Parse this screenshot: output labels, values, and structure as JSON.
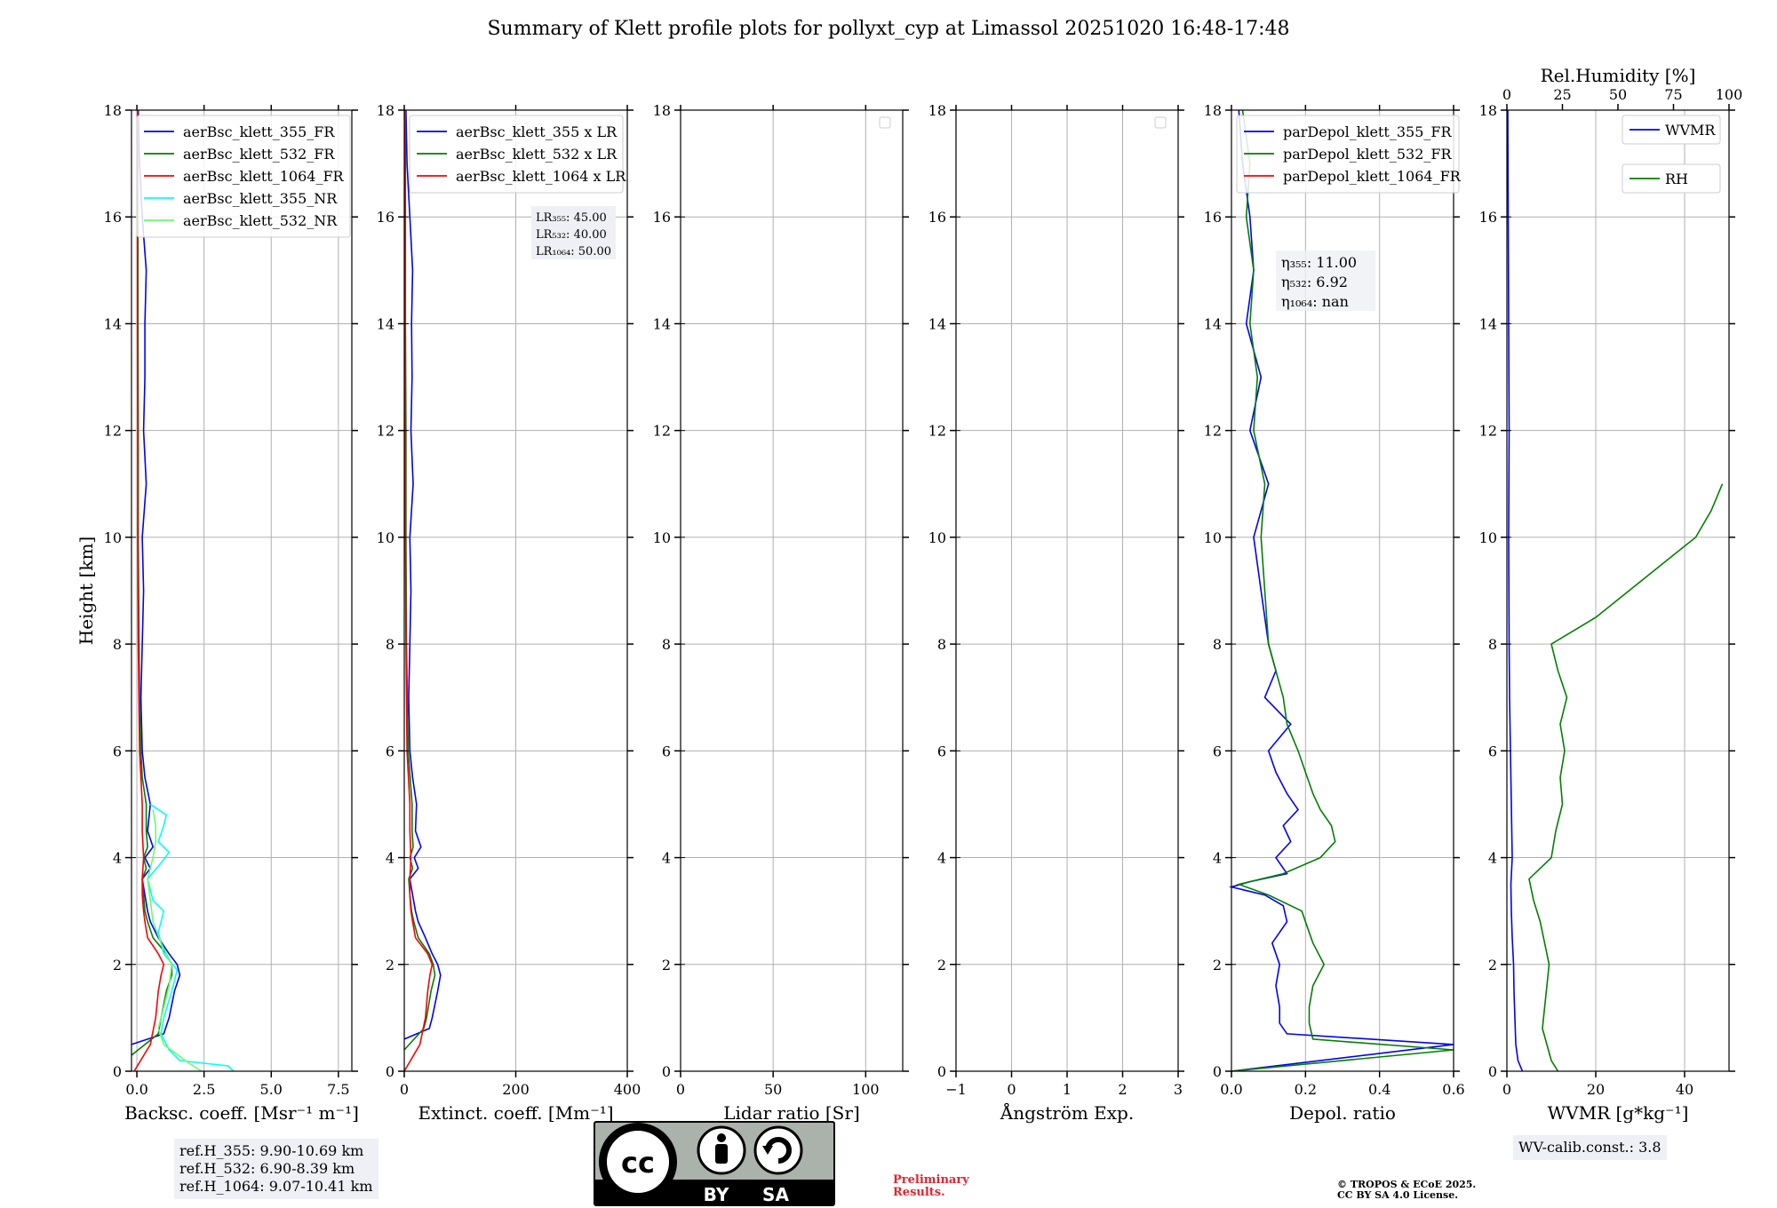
{
  "title": "Summary of Klett profile plots for pollyxt_cyp at Limassol 20251020 16:48-17:48",
  "chart_data": [
    {
      "type": "line",
      "xlabel": "Backsc. coeff. [Msr⁻¹ m⁻¹]",
      "ylabel": "Height [km]",
      "xlim": [
        -0.2,
        8
      ],
      "ylim": [
        0,
        18
      ],
      "xticks": [
        0,
        2.5,
        5,
        7.5
      ],
      "xticklabels": [
        "0.0",
        "2.5",
        "5.0",
        "7.5"
      ],
      "yticks": [
        0,
        2,
        4,
        6,
        8,
        10,
        12,
        14,
        16,
        18
      ],
      "legend": "top-left",
      "grid": true,
      "series": [
        {
          "name": "aerBsc_klett_355_FR",
          "color": "#0000ff",
          "y": [
            0.5,
            0.7,
            1.0,
            1.5,
            1.8,
            2.0,
            2.2,
            2.5,
            2.8,
            3.0,
            3.3,
            3.6,
            3.8,
            4.0,
            4.2,
            4.5,
            5.0,
            5.5,
            6.0,
            7.0,
            8.0,
            9.0,
            10.0,
            11.0,
            12.0,
            13.0,
            14.0,
            15.0,
            16.0,
            17.0,
            18.0
          ],
          "x": [
            -0.2,
            1.0,
            1.2,
            1.4,
            1.6,
            1.5,
            1.2,
            0.8,
            0.5,
            0.4,
            0.3,
            0.2,
            0.5,
            0.3,
            0.6,
            0.4,
            0.5,
            0.3,
            0.2,
            0.15,
            0.2,
            0.25,
            0.2,
            0.35,
            0.25,
            0.3,
            0.3,
            0.35,
            0.2,
            0.1,
            0.05
          ]
        },
        {
          "name": "aerBsc_klett_532_FR",
          "color": "#008000",
          "y": [
            0.3,
            0.7,
            1.0,
            1.5,
            1.8,
            2.0,
            2.2,
            2.5,
            2.8,
            3.0,
            3.3,
            3.6,
            3.8,
            4.0,
            4.2,
            4.5,
            5.0,
            5.5,
            6.0,
            7.0,
            8.0,
            10.0,
            12.0,
            14.0,
            16.0,
            18.0
          ],
          "x": [
            -0.2,
            0.8,
            0.9,
            1.1,
            1.3,
            1.3,
            1.1,
            0.6,
            0.4,
            0.3,
            0.25,
            0.2,
            0.35,
            0.25,
            0.4,
            0.35,
            0.35,
            0.2,
            0.15,
            0.1,
            0.08,
            0.05,
            0.05,
            0.04,
            0.04,
            0.03
          ]
        },
        {
          "name": "aerBsc_klett_1064_FR",
          "color": "#ff0000",
          "y": [
            0.0,
            0.5,
            1.0,
            1.5,
            1.8,
            2.0,
            2.2,
            2.5,
            2.8,
            3.0,
            3.3,
            3.6,
            4.0,
            4.5,
            5.0,
            6.0,
            8.0,
            10.0,
            12.0,
            14.0,
            16.0,
            18.0
          ],
          "x": [
            -0.1,
            0.5,
            0.7,
            0.8,
            0.9,
            1.0,
            0.8,
            0.4,
            0.3,
            0.25,
            0.2,
            0.2,
            0.25,
            0.2,
            0.2,
            0.1,
            0.05,
            0.03,
            0.03,
            0.02,
            0.02,
            0.02
          ]
        },
        {
          "name": "aerBsc_klett_355_NR",
          "color": "#00ffff",
          "y": [
            0.0,
            0.1,
            0.2,
            0.4,
            0.7,
            1.0,
            1.5,
            1.9,
            2.2,
            2.6,
            3.0,
            3.2,
            3.6,
            3.9,
            4.1,
            4.3,
            4.6,
            4.8,
            5.0
          ],
          "x": [
            3.6,
            3.4,
            1.6,
            1.2,
            0.9,
            1.0,
            1.3,
            1.5,
            1.0,
            0.8,
            1.0,
            0.6,
            0.4,
            0.9,
            1.2,
            0.8,
            1.0,
            1.1,
            0.5
          ]
        },
        {
          "name": "aerBsc_klett_532_NR",
          "color": "#66ff66",
          "y": [
            0.0,
            0.2,
            0.5,
            0.8,
            1.2,
            1.6,
            2.0,
            2.4,
            2.8,
            3.2,
            3.6,
            4.0,
            4.3,
            4.6,
            4.9
          ],
          "x": [
            2.4,
            1.8,
            1.0,
            0.8,
            1.0,
            1.2,
            1.3,
            0.9,
            0.6,
            0.5,
            0.4,
            0.6,
            0.7,
            0.7,
            0.6
          ]
        }
      ],
      "refheights": [
        "ref.H_355: 9.90-10.69 km",
        "ref.H_532: 6.90-8.39 km",
        "ref.H_1064: 9.07-10.41 km"
      ]
    },
    {
      "type": "line",
      "xlabel": "Extinct. coeff. [Mm⁻¹]",
      "xlim": [
        0,
        400
      ],
      "ylim": [
        0,
        18
      ],
      "xticks": [
        0,
        200,
        400
      ],
      "xticklabels": [
        "0",
        "200",
        "400"
      ],
      "yticks": [
        0,
        2,
        4,
        6,
        8,
        10,
        12,
        14,
        16,
        18
      ],
      "legend": "top-left",
      "grid": true,
      "series": [
        {
          "name": "aerBsc_klett_355 x LR",
          "color": "#0000ff",
          "y": [
            0.6,
            0.8,
            1.0,
            1.5,
            1.8,
            2.0,
            2.2,
            2.5,
            2.8,
            3.0,
            3.3,
            3.6,
            3.8,
            4.0,
            4.2,
            4.5,
            5.0,
            5.5,
            6.0,
            7.0,
            8.0,
            9.0,
            10.0,
            11.0,
            12.0,
            13.0,
            14.0,
            15.0,
            16.0,
            17.0,
            18.0
          ],
          "x": [
            0,
            45,
            50,
            60,
            65,
            60,
            50,
            38,
            25,
            20,
            15,
            10,
            25,
            18,
            30,
            20,
            22,
            15,
            10,
            8,
            10,
            12,
            10,
            16,
            12,
            14,
            13,
            15,
            10,
            5,
            3
          ]
        },
        {
          "name": "aerBsc_klett_532 x LR",
          "color": "#008000",
          "y": [
            0.4,
            0.8,
            1.0,
            1.5,
            1.8,
            2.0,
            2.2,
            2.5,
            2.8,
            3.0,
            3.3,
            3.6,
            3.8,
            4.0,
            4.2,
            4.5,
            5.0,
            6.0,
            8.0,
            10.0,
            12.0,
            14.0,
            16.0,
            18.0
          ],
          "x": [
            0,
            35,
            40,
            48,
            55,
            52,
            45,
            25,
            17,
            13,
            10,
            8,
            15,
            10,
            16,
            14,
            14,
            7,
            4,
            3,
            3,
            2,
            2,
            2
          ]
        },
        {
          "name": "aerBsc_klett_1064 x LR",
          "color": "#ff0000",
          "y": [
            0.0,
            0.5,
            1.0,
            1.5,
            1.8,
            2.0,
            2.2,
            2.5,
            2.8,
            3.0,
            3.3,
            3.6,
            4.0,
            4.5,
            5.0,
            6.0,
            8.0,
            10.0,
            12.0,
            14.0,
            16.0,
            18.0
          ],
          "x": [
            0,
            28,
            38,
            42,
            46,
            50,
            42,
            20,
            15,
            12,
            10,
            10,
            12,
            10,
            10,
            5,
            3,
            2,
            2,
            1,
            1,
            1
          ]
        }
      ],
      "lidar_ratios": [
        "LR₃₅₅: 45.00",
        "LR₅₃₂: 40.00",
        "LR₁₀₆₄: 50.00"
      ]
    },
    {
      "type": "line",
      "xlabel": "Lidar ratio [Sr]",
      "xlim": [
        0,
        120
      ],
      "ylim": [
        0,
        18
      ],
      "xticks": [
        0,
        50,
        100
      ],
      "xticklabels": [
        "0",
        "50",
        "100"
      ],
      "yticks": [
        0,
        2,
        4,
        6,
        8,
        10,
        12,
        14,
        16,
        18
      ],
      "legend": "top-right",
      "grid": true,
      "series": []
    },
    {
      "type": "line",
      "xlabel": "Ångström Exp.",
      "xlim": [
        -1,
        3
      ],
      "ylim": [
        0,
        18
      ],
      "xticks": [
        -1,
        0,
        1,
        2,
        3
      ],
      "xticklabels": [
        "−1",
        "0",
        "1",
        "2",
        "3"
      ],
      "yticks": [
        0,
        2,
        4,
        6,
        8,
        10,
        12,
        14,
        16,
        18
      ],
      "legend": "top-right",
      "grid": true,
      "series": []
    },
    {
      "type": "line",
      "xlabel": "Depol. ratio",
      "xlim": [
        0,
        0.6
      ],
      "ylim": [
        0,
        18
      ],
      "xticks": [
        0,
        0.2,
        0.4,
        0.6
      ],
      "xticklabels": [
        "0.0",
        "0.2",
        "0.4",
        "0.6"
      ],
      "yticks": [
        0,
        2,
        4,
        6,
        8,
        10,
        12,
        14,
        16,
        18
      ],
      "legend": "top-left",
      "grid": true,
      "series": [
        {
          "name": "parDepol_klett_355_FR",
          "color": "#0000ff",
          "y": [
            0.0,
            0.5,
            0.7,
            0.9,
            1.2,
            1.6,
            2.0,
            2.4,
            2.8,
            3.1,
            3.3,
            3.45,
            3.55,
            3.7,
            4.0,
            4.3,
            4.6,
            4.9,
            5.2,
            5.6,
            6.0,
            6.5,
            7.0,
            7.5,
            8.0,
            9.0,
            10.0,
            11.0,
            12.0,
            13.0,
            14.0,
            15.0,
            16.0,
            17.0,
            18.0
          ],
          "x": [
            0.0,
            0.6,
            0.15,
            0.13,
            0.13,
            0.12,
            0.13,
            0.11,
            0.15,
            0.14,
            0.09,
            0.0,
            0.05,
            0.15,
            0.12,
            0.16,
            0.14,
            0.18,
            0.15,
            0.12,
            0.1,
            0.16,
            0.09,
            0.12,
            0.1,
            0.08,
            0.06,
            0.1,
            0.05,
            0.08,
            0.04,
            0.06,
            0.05,
            0.03,
            0.02
          ]
        },
        {
          "name": "parDepol_klett_532_FR",
          "color": "#008000",
          "y": [
            0.0,
            0.4,
            0.6,
            0.9,
            1.2,
            1.6,
            2.0,
            2.4,
            2.8,
            3.0,
            3.3,
            3.5,
            3.7,
            4.0,
            4.3,
            4.6,
            4.9,
            5.2,
            5.6,
            6.0,
            6.5,
            7.0,
            7.5,
            8.0,
            9.0,
            10.0,
            11.0,
            12.0,
            13.0,
            14.0,
            15.0,
            16.0,
            17.0,
            18.0
          ],
          "x": [
            0.0,
            0.6,
            0.22,
            0.21,
            0.21,
            0.22,
            0.25,
            0.22,
            0.2,
            0.19,
            0.1,
            0.02,
            0.14,
            0.24,
            0.28,
            0.27,
            0.24,
            0.22,
            0.2,
            0.18,
            0.15,
            0.14,
            0.12,
            0.1,
            0.09,
            0.08,
            0.09,
            0.06,
            0.07,
            0.05,
            0.06,
            0.04,
            0.05,
            0.03
          ]
        },
        {
          "name": "parDepol_klett_1064_FR",
          "color": "#ff0000",
          "y": [],
          "x": []
        }
      ],
      "eta": [
        "η₃₅₅: 11.00",
        "η₅₃₂: 6.92",
        "η₁₀₆₄: nan"
      ]
    },
    {
      "type": "line",
      "xlabel": "WVMR [g*kg⁻¹]",
      "x2label": "Rel.Humidity [%]",
      "xlim": [
        0,
        50
      ],
      "x2lim": [
        0,
        100
      ],
      "ylim": [
        0,
        18
      ],
      "xticks": [
        0,
        20,
        40
      ],
      "xticklabels": [
        "0",
        "20",
        "40"
      ],
      "x2ticks": [
        0,
        25,
        50,
        75,
        100
      ],
      "x2ticklabels": [
        "0",
        "25",
        "50",
        "75",
        "100"
      ],
      "yticks": [
        0,
        2,
        4,
        6,
        8,
        10,
        12,
        14,
        16,
        18
      ],
      "legend": "top-right",
      "grid": true,
      "series": [
        {
          "name": "WVMR",
          "color": "#0000ff",
          "axis": "x",
          "y": [
            0.0,
            0.2,
            0.5,
            1.0,
            1.5,
            2.0,
            2.5,
            3.0,
            3.5,
            4.0,
            5.0,
            6.0,
            7.0,
            8.0,
            10.0,
            12.0,
            14.0,
            16.0,
            18.0
          ],
          "x": [
            3.5,
            2.5,
            2.0,
            1.8,
            1.6,
            1.5,
            1.2,
            1.0,
            0.9,
            1.2,
            1.0,
            0.8,
            0.6,
            0.5,
            0.4,
            0.5,
            0.4,
            0.3,
            0.2
          ]
        },
        {
          "name": "RH",
          "color": "#008000",
          "axis": "x2",
          "y": [
            0.0,
            0.2,
            0.5,
            0.8,
            1.2,
            1.6,
            2.0,
            2.4,
            2.8,
            3.2,
            3.6,
            4.0,
            4.5,
            5.0,
            5.5,
            6.0,
            6.5,
            7.0,
            7.5,
            8.0,
            8.5,
            9.0,
            9.5,
            10.0,
            10.5,
            11.0
          ],
          "x": [
            23,
            20,
            18,
            16,
            17,
            18,
            19,
            17,
            15,
            12,
            10,
            20,
            22,
            25,
            24,
            26,
            24,
            27,
            23,
            20,
            40,
            55,
            70,
            85,
            92,
            97
          ]
        }
      ],
      "wv_calib": "WV-calib.const.: 3.8"
    }
  ],
  "footer": {
    "preliminary_line1": "Preliminary",
    "preliminary_line2": "Results.",
    "copyright_line1": "© TROPOS & ECoE 2025.",
    "copyright_line2": "CC BY SA 4.0 License.",
    "cc_by": "BY",
    "cc_sa": "SA",
    "cc_mark": "cc"
  },
  "colors": {
    "grid": "#b0b0b0",
    "legend_bg": "#ffffff",
    "info_bg": "#eef0f5",
    "prelim_red": "#e8222d"
  }
}
